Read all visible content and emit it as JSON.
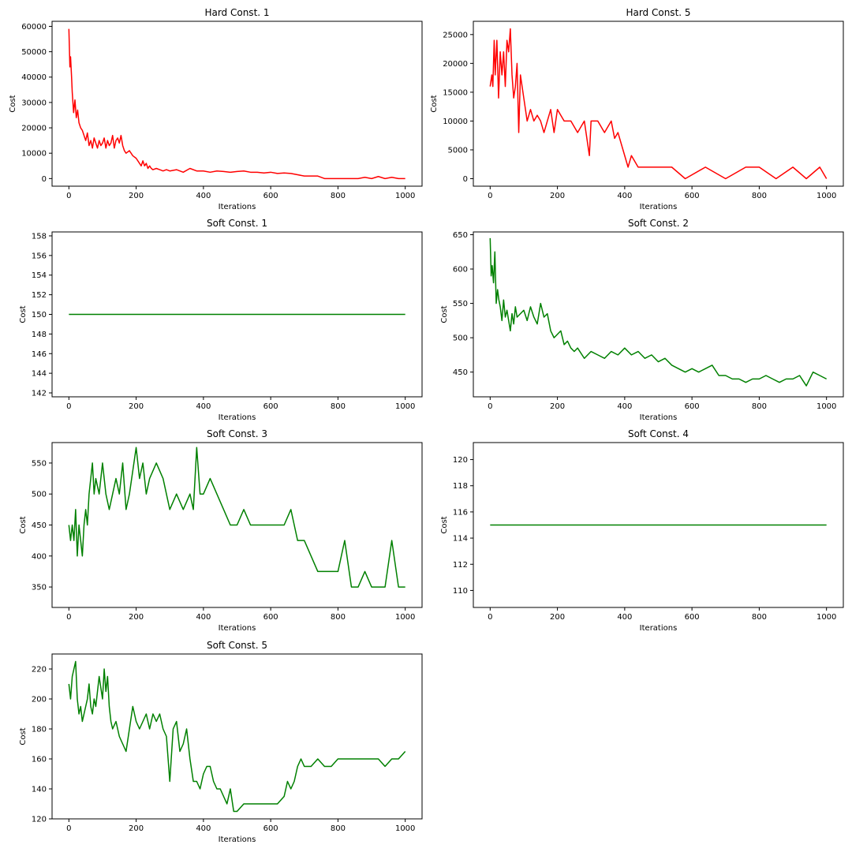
{
  "figure": {
    "background": "#ffffff",
    "colors": {
      "hard": "#ff0000",
      "soft": "#008000"
    }
  },
  "chart_data": [
    {
      "id": "hard1",
      "type": "line",
      "title": "Hard Const. 1",
      "xlabel": "Iterations",
      "ylabel": "Cost",
      "xlim": [
        -50,
        1050
      ],
      "ylim": [
        -3000,
        62000
      ],
      "xticks": [
        0,
        200,
        400,
        600,
        800,
        1000
      ],
      "yticks": [
        0,
        10000,
        20000,
        30000,
        40000,
        50000,
        60000
      ],
      "grid": false,
      "color": "#ff0000",
      "series": [
        {
          "x": [
            0,
            3,
            5,
            8,
            10,
            14,
            18,
            22,
            26,
            30,
            35,
            40,
            45,
            50,
            55,
            60,
            65,
            70,
            75,
            80,
            85,
            90,
            95,
            100,
            105,
            110,
            115,
            120,
            125,
            130,
            135,
            140,
            145,
            150,
            155,
            160,
            165,
            170,
            180,
            190,
            200,
            210,
            215,
            220,
            225,
            230,
            235,
            240,
            245,
            250,
            260,
            270,
            280,
            290,
            300,
            320,
            340,
            360,
            380,
            400,
            420,
            440,
            460,
            480,
            500,
            520,
            540,
            560,
            580,
            600,
            620,
            640,
            660,
            680,
            700,
            720,
            740,
            760,
            800,
            860,
            880,
            900,
            920,
            940,
            960,
            980,
            1000
          ],
          "y": [
            59000,
            44000,
            48000,
            40000,
            34000,
            26000,
            31000,
            24000,
            27000,
            22000,
            20000,
            19000,
            17000,
            15000,
            18000,
            13000,
            15000,
            12000,
            16000,
            14000,
            12000,
            15000,
            13000,
            14000,
            16000,
            12000,
            15000,
            13000,
            14000,
            17000,
            12000,
            15000,
            16000,
            14000,
            17000,
            13000,
            11000,
            10000,
            11000,
            9000,
            8000,
            6000,
            5000,
            7000,
            5000,
            6000,
            4000,
            5000,
            4000,
            3500,
            4000,
            3500,
            3000,
            3500,
            3000,
            3500,
            2500,
            4000,
            3000,
            3000,
            2500,
            3000,
            2800,
            2500,
            2800,
            3000,
            2500,
            2500,
            2200,
            2500,
            2000,
            2200,
            2000,
            1500,
            1000,
            1000,
            1000,
            0,
            0,
            0,
            500,
            0,
            800,
            0,
            500,
            0,
            0
          ]
        }
      ]
    },
    {
      "id": "hard5",
      "type": "line",
      "title": "Hard Const. 5",
      "xlabel": "Iterations",
      "ylabel": "Cost",
      "xlim": [
        -50,
        1050
      ],
      "ylim": [
        -1300,
        27300
      ],
      "xticks": [
        0,
        200,
        400,
        600,
        800,
        1000
      ],
      "yticks": [
        0,
        5000,
        10000,
        15000,
        20000,
        25000
      ],
      "grid": false,
      "color": "#ff0000",
      "series": [
        {
          "x": [
            0,
            5,
            8,
            12,
            15,
            20,
            25,
            30,
            35,
            40,
            45,
            50,
            55,
            60,
            65,
            70,
            75,
            80,
            85,
            90,
            95,
            100,
            105,
            110,
            120,
            130,
            140,
            150,
            160,
            170,
            180,
            190,
            200,
            210,
            220,
            240,
            260,
            280,
            295,
            300,
            310,
            320,
            340,
            360,
            370,
            380,
            400,
            410,
            420,
            440,
            460,
            500,
            540,
            580,
            640,
            700,
            760,
            800,
            850,
            900,
            940,
            980,
            1000
          ],
          "y": [
            16000,
            18000,
            16000,
            24000,
            18000,
            24000,
            14000,
            22000,
            18000,
            22000,
            16000,
            24000,
            22000,
            26000,
            18000,
            14000,
            16000,
            20000,
            8000,
            18000,
            16000,
            14000,
            12000,
            10000,
            12000,
            10000,
            11000,
            10000,
            8000,
            10000,
            12000,
            8000,
            12000,
            11000,
            10000,
            10000,
            8000,
            10000,
            4000,
            10000,
            10000,
            10000,
            8000,
            10000,
            7000,
            8000,
            4000,
            2000,
            4000,
            2000,
            2000,
            2000,
            2000,
            0,
            2000,
            0,
            2000,
            2000,
            0,
            2000,
            0,
            2000,
            0
          ]
        }
      ]
    },
    {
      "id": "soft1",
      "type": "line",
      "title": "Soft Const. 1",
      "xlabel": "Iterations",
      "ylabel": "Cost",
      "xlim": [
        -50,
        1050
      ],
      "ylim": [
        141.6,
        158.4
      ],
      "xticks": [
        0,
        200,
        400,
        600,
        800,
        1000
      ],
      "yticks": [
        142,
        144,
        146,
        148,
        150,
        152,
        154,
        156,
        158
      ],
      "grid": false,
      "color": "#008000",
      "series": [
        {
          "x": [
            0,
            1000
          ],
          "y": [
            150,
            150
          ]
        }
      ]
    },
    {
      "id": "soft2",
      "type": "line",
      "title": "Soft Const. 2",
      "xlabel": "Iterations",
      "ylabel": "Cost",
      "xlim": [
        -50,
        1050
      ],
      "ylim": [
        414,
        654
      ],
      "xticks": [
        0,
        200,
        400,
        600,
        800,
        1000
      ],
      "yticks": [
        450,
        500,
        550,
        600,
        650
      ],
      "grid": false,
      "color": "#008000",
      "series": [
        {
          "x": [
            0,
            3,
            6,
            10,
            14,
            18,
            22,
            26,
            30,
            35,
            40,
            45,
            50,
            55,
            60,
            65,
            70,
            75,
            80,
            90,
            100,
            110,
            120,
            130,
            140,
            150,
            160,
            170,
            180,
            190,
            200,
            210,
            220,
            230,
            240,
            250,
            260,
            280,
            300,
            320,
            340,
            360,
            380,
            400,
            420,
            440,
            460,
            480,
            500,
            520,
            540,
            560,
            580,
            600,
            620,
            640,
            660,
            680,
            700,
            720,
            740,
            760,
            780,
            800,
            820,
            840,
            860,
            880,
            900,
            920,
            940,
            960,
            980,
            1000
          ],
          "y": [
            645,
            590,
            605,
            580,
            625,
            550,
            570,
            555,
            545,
            525,
            555,
            530,
            540,
            525,
            510,
            535,
            520,
            545,
            530,
            535,
            540,
            525,
            545,
            530,
            520,
            550,
            530,
            535,
            510,
            500,
            505,
            510,
            490,
            495,
            485,
            480,
            485,
            470,
            480,
            475,
            470,
            480,
            475,
            485,
            475,
            480,
            470,
            475,
            465,
            470,
            460,
            455,
            450,
            455,
            450,
            455,
            460,
            445,
            445,
            440,
            440,
            435,
            440,
            440,
            445,
            440,
            435,
            440,
            440,
            445,
            430,
            450,
            445,
            440
          ]
        }
      ]
    },
    {
      "id": "soft3",
      "type": "line",
      "title": "Soft Const. 3",
      "xlabel": "Iterations",
      "ylabel": "Cost",
      "xlim": [
        -50,
        1050
      ],
      "ylim": [
        317,
        583
      ],
      "xticks": [
        0,
        200,
        400,
        600,
        800,
        1000
      ],
      "yticks": [
        350,
        400,
        450,
        500,
        550
      ],
      "grid": false,
      "color": "#008000",
      "series": [
        {
          "x": [
            0,
            5,
            10,
            15,
            20,
            25,
            30,
            35,
            40,
            45,
            50,
            55,
            60,
            65,
            70,
            75,
            80,
            90,
            100,
            110,
            120,
            130,
            140,
            150,
            160,
            170,
            180,
            200,
            210,
            220,
            230,
            240,
            260,
            280,
            300,
            320,
            340,
            360,
            370,
            380,
            390,
            400,
            420,
            440,
            460,
            480,
            500,
            520,
            540,
            560,
            580,
            600,
            620,
            640,
            660,
            680,
            700,
            720,
            740,
            760,
            780,
            800,
            820,
            840,
            860,
            880,
            900,
            920,
            940,
            960,
            980,
            1000
          ],
          "y": [
            450,
            425,
            450,
            425,
            475,
            400,
            450,
            425,
            400,
            450,
            475,
            450,
            500,
            525,
            550,
            500,
            525,
            500,
            550,
            500,
            475,
            500,
            525,
            500,
            550,
            475,
            500,
            575,
            525,
            550,
            500,
            525,
            550,
            525,
            475,
            500,
            475,
            500,
            475,
            575,
            500,
            500,
            525,
            500,
            475,
            450,
            450,
            475,
            450,
            450,
            450,
            450,
            450,
            450,
            475,
            425,
            425,
            400,
            375,
            375,
            375,
            375,
            425,
            350,
            350,
            375,
            350,
            350,
            350,
            425,
            350,
            350
          ]
        }
      ]
    },
    {
      "id": "soft4",
      "type": "line",
      "title": "Soft Const. 4",
      "xlabel": "Iterations",
      "ylabel": "Cost",
      "xlim": [
        -50,
        1050
      ],
      "ylim": [
        108.7,
        121.3
      ],
      "xticks": [
        0,
        200,
        400,
        600,
        800,
        1000
      ],
      "yticks": [
        110,
        112,
        114,
        116,
        118,
        120
      ],
      "grid": false,
      "color": "#008000",
      "series": [
        {
          "x": [
            0,
            1000
          ],
          "y": [
            115,
            115
          ]
        }
      ]
    },
    {
      "id": "soft5",
      "type": "line",
      "title": "Soft Const. 5",
      "xlabel": "Iterations",
      "ylabel": "Cost",
      "xlim": [
        -50,
        1050
      ],
      "ylim": [
        120,
        230
      ],
      "xticks": [
        0,
        200,
        400,
        600,
        800,
        1000
      ],
      "yticks": [
        120,
        140,
        160,
        180,
        200,
        220
      ],
      "grid": false,
      "color": "#008000",
      "series": [
        {
          "x": [
            0,
            5,
            10,
            15,
            20,
            25,
            30,
            35,
            40,
            45,
            50,
            55,
            60,
            65,
            70,
            75,
            80,
            90,
            100,
            105,
            110,
            115,
            120,
            125,
            130,
            140,
            150,
            160,
            170,
            180,
            190,
            200,
            210,
            220,
            230,
            240,
            250,
            260,
            270,
            280,
            290,
            300,
            310,
            320,
            330,
            340,
            350,
            360,
            370,
            380,
            390,
            400,
            410,
            420,
            430,
            440,
            450,
            460,
            470,
            480,
            490,
            500,
            520,
            540,
            560,
            580,
            600,
            620,
            640,
            650,
            660,
            670,
            680,
            690,
            700,
            720,
            740,
            760,
            780,
            800,
            820,
            840,
            860,
            880,
            900,
            920,
            940,
            960,
            980,
            1000
          ],
          "y": [
            210,
            200,
            215,
            220,
            225,
            200,
            190,
            195,
            185,
            190,
            195,
            200,
            210,
            195,
            190,
            200,
            195,
            215,
            200,
            220,
            205,
            215,
            195,
            185,
            180,
            185,
            175,
            170,
            165,
            180,
            195,
            185,
            180,
            185,
            190,
            180,
            190,
            185,
            190,
            180,
            175,
            145,
            180,
            185,
            165,
            170,
            180,
            160,
            145,
            145,
            140,
            150,
            155,
            155,
            145,
            140,
            140,
            135,
            130,
            140,
            125,
            125,
            130,
            130,
            130,
            130,
            130,
            130,
            135,
            145,
            140,
            145,
            155,
            160,
            155,
            155,
            160,
            155,
            155,
            160,
            160,
            160,
            160,
            160,
            160,
            160,
            155,
            160,
            160,
            165
          ]
        }
      ]
    }
  ]
}
